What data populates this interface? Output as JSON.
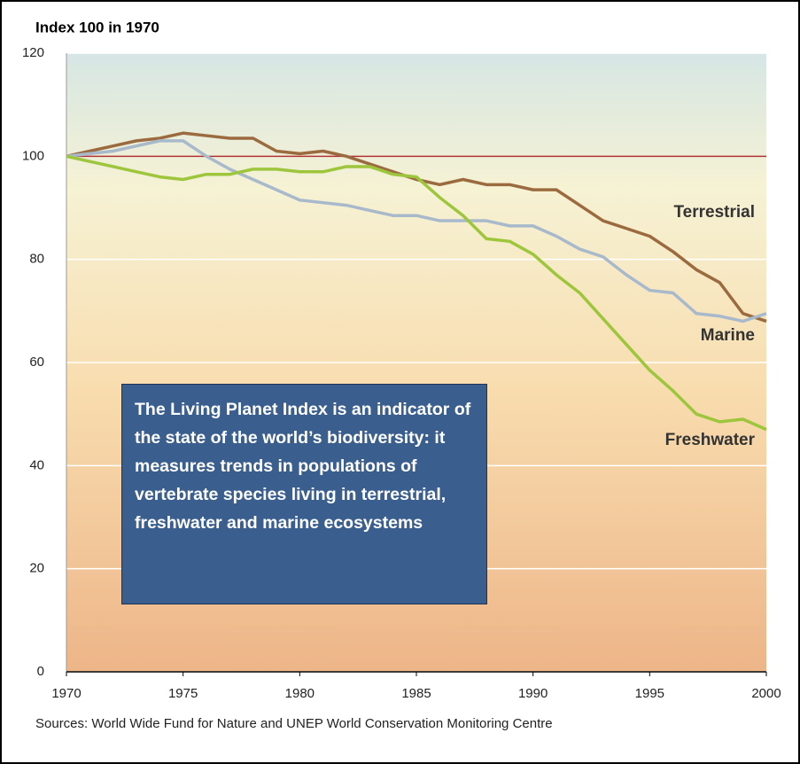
{
  "chart_data": {
    "type": "line",
    "title": "Index 100 in 1970",
    "x": [
      1970,
      1971,
      1972,
      1973,
      1974,
      1975,
      1976,
      1977,
      1978,
      1979,
      1980,
      1981,
      1982,
      1983,
      1984,
      1985,
      1986,
      1987,
      1988,
      1989,
      1990,
      1991,
      1992,
      1993,
      1994,
      1995,
      1996,
      1997,
      1998,
      1999,
      2000
    ],
    "series": [
      {
        "name": "Terrestrial",
        "color": "#9b6b3f",
        "values": [
          100,
          101,
          102,
          103,
          103.5,
          104.5,
          104,
          103.5,
          103.5,
          101,
          100.5,
          101,
          100,
          98.5,
          97,
          95.5,
          94.5,
          95.5,
          94.5,
          94.5,
          93.5,
          93.5,
          90.5,
          87.5,
          86,
          84.5,
          81.5,
          78,
          75.5,
          69.5,
          68
        ]
      },
      {
        "name": "Marine",
        "color": "#a9b9cc",
        "values": [
          100,
          100.5,
          101,
          102,
          103,
          103,
          100,
          97.5,
          95.5,
          93.5,
          91.5,
          91,
          90.5,
          89.5,
          88.5,
          88.5,
          87.5,
          87.5,
          87.5,
          86.5,
          86.5,
          84.5,
          82,
          80.5,
          77,
          74,
          73.5,
          69.5,
          69,
          68,
          69.5
        ]
      },
      {
        "name": "Freshwater",
        "color": "#9dc63c",
        "values": [
          100,
          99,
          98,
          97,
          96,
          95.5,
          96.5,
          96.5,
          97.5,
          97.5,
          97,
          97,
          98,
          98,
          96.5,
          96,
          92,
          88.5,
          84,
          83.5,
          81,
          77,
          73.5,
          68.5,
          63.5,
          58.5,
          54.5,
          50,
          48.5,
          49,
          47
        ]
      }
    ],
    "reference_line": {
      "value": 100,
      "color": "#b03232"
    },
    "xlim": [
      1970,
      2000
    ],
    "xticks": [
      1970,
      1975,
      1980,
      1985,
      1990,
      1995,
      2000
    ],
    "ylim": [
      0,
      120
    ],
    "yticks": [
      0,
      20,
      40,
      60,
      80,
      100,
      120
    ],
    "grid": true,
    "annotation": "The Living Planet Index is an indicator of the state of the world’s biodiversity: it measures trends in populations of vertebrate species living in terrestrial, freshwater and marine ecosystems",
    "source": "Sources: World Wide Fund for Nature and UNEP World Conservation Monitoring Centre"
  }
}
